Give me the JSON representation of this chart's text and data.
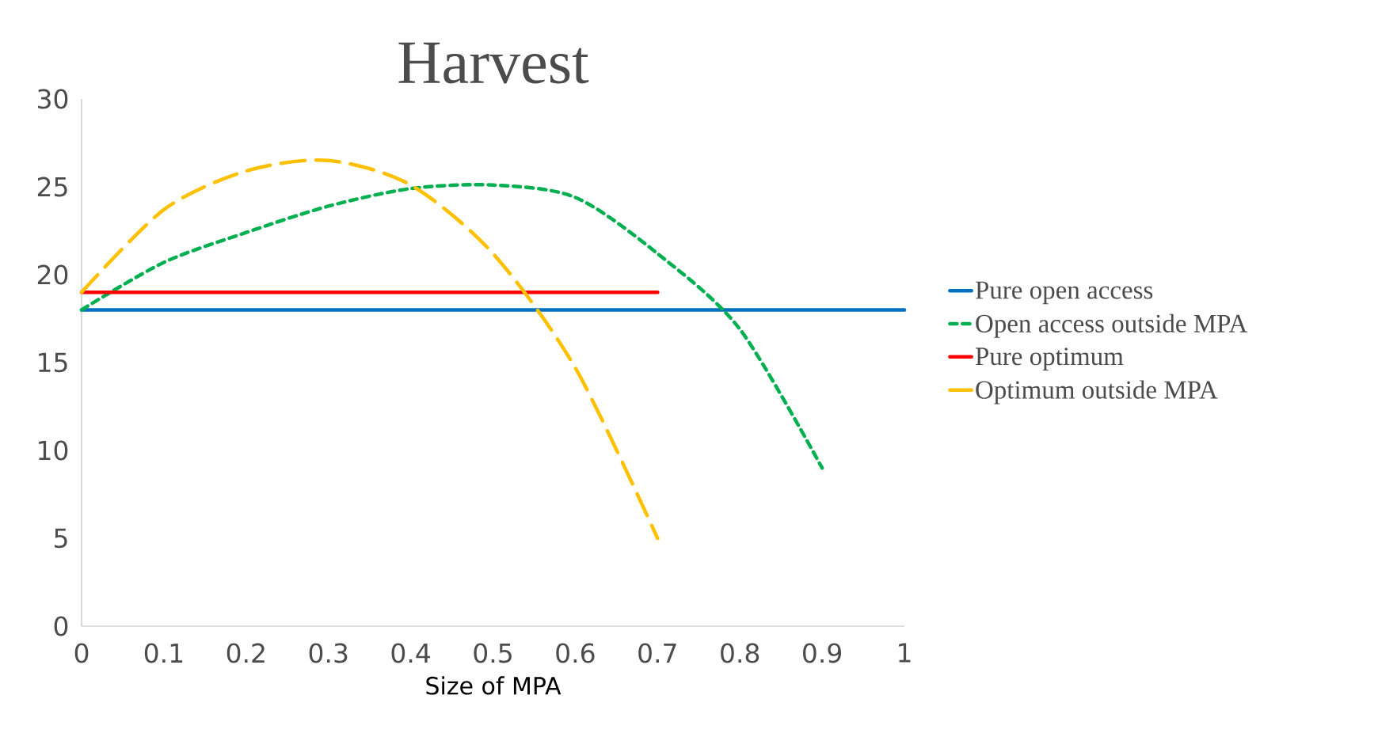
{
  "chart_data": {
    "type": "line",
    "title": "Harvest",
    "xlabel": "Size of MPA",
    "x": [
      0,
      0.1,
      0.2,
      0.3,
      0.4,
      0.5,
      0.6,
      0.7,
      0.8,
      0.9,
      1
    ],
    "series": [
      {
        "name": "Pure open access",
        "color": "#0070c0",
        "line_style": "solid",
        "values": [
          18,
          18,
          18,
          18,
          18,
          18,
          18,
          18,
          18,
          18,
          18
        ]
      },
      {
        "name": "Open access outside MPA",
        "color": "#00b050",
        "line_style": "dotted",
        "values": [
          18,
          20.7,
          22.4,
          23.9,
          24.9,
          25.1,
          24.4,
          21.2,
          16.9,
          9,
          null
        ]
      },
      {
        "name": "Pure optimum",
        "color": "#ff0000",
        "line_style": "solid",
        "values": [
          19,
          19,
          19,
          19,
          19,
          19,
          19,
          19,
          null,
          null,
          null
        ]
      },
      {
        "name": "Optimum outside MPA",
        "color": "#ffc000",
        "line_style": "dashed",
        "values": [
          19,
          23.7,
          25.9,
          26.5,
          25.1,
          21.2,
          14.7,
          5,
          null,
          null,
          null
        ]
      }
    ],
    "xlim": [
      0,
      1
    ],
    "ylim": [
      0,
      30
    ],
    "xticks": [
      0,
      0.1,
      0.2,
      0.3,
      0.4,
      0.5,
      0.6,
      0.7,
      0.8,
      0.9,
      1
    ],
    "yticks": [
      0,
      5,
      10,
      15,
      20,
      25,
      30
    ],
    "grid": false,
    "legend": "right",
    "marker": "none"
  }
}
